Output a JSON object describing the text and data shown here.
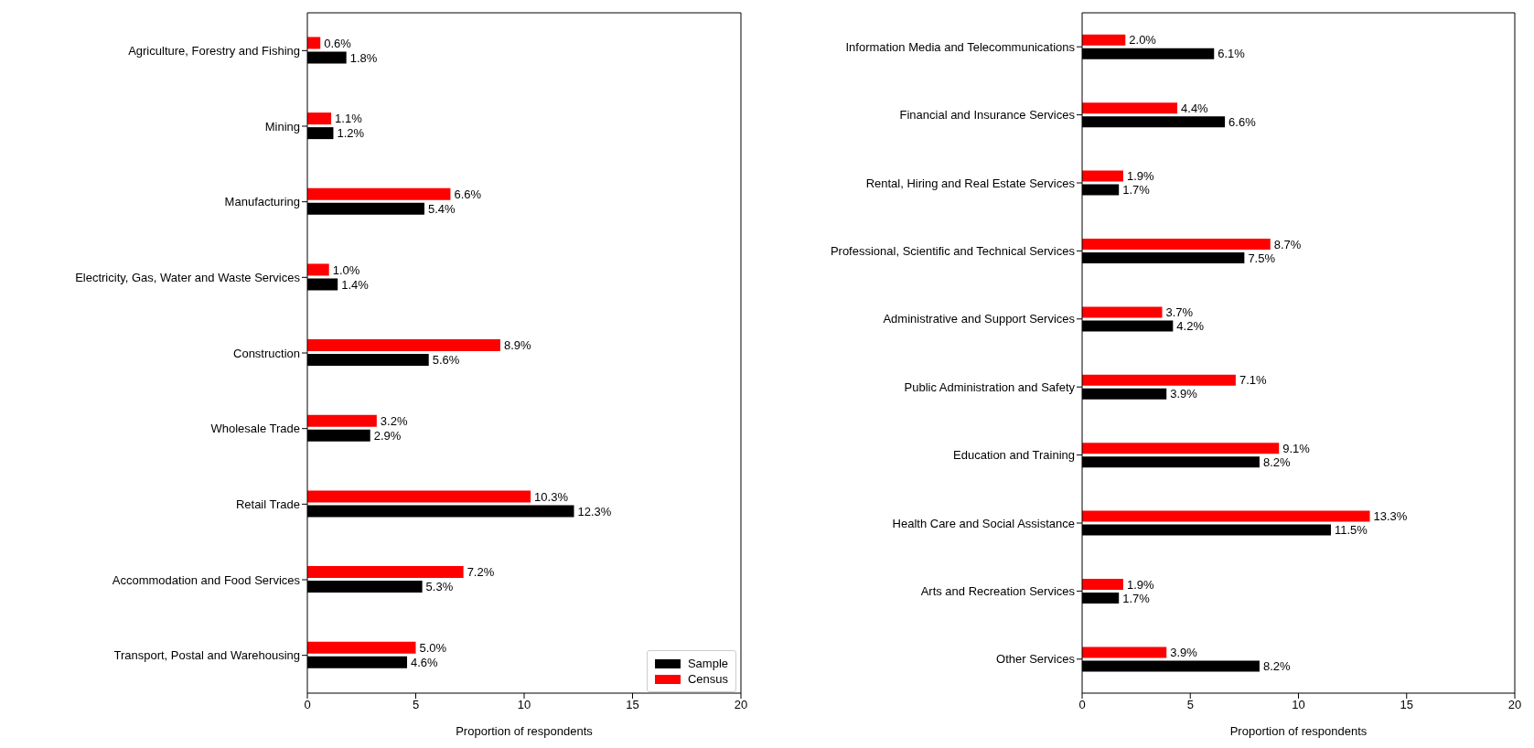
{
  "chart_data": [
    {
      "type": "bar",
      "orientation": "horizontal",
      "categories": [
        "Agriculture, Forestry and Fishing",
        "Mining",
        "Manufacturing",
        "Electricity, Gas, Water and Waste Services",
        "Construction",
        "Wholesale Trade",
        "Retail Trade",
        "Accommodation and Food Services",
        "Transport, Postal and Warehousing"
      ],
      "series": [
        {
          "name": "Sample",
          "color": "#000000",
          "values": [
            1.8,
            1.2,
            5.4,
            1.4,
            5.6,
            2.9,
            12.3,
            5.3,
            4.6
          ],
          "value_labels": [
            "1.8%",
            "1.2%",
            "5.4%",
            "1.4%",
            "5.6%",
            "2.9%",
            "12.3%",
            "5.3%",
            "4.6%"
          ]
        },
        {
          "name": "Census",
          "color": "#ff0000",
          "values": [
            0.6,
            1.1,
            6.6,
            1.0,
            8.9,
            3.2,
            10.3,
            7.2,
            5.0
          ],
          "value_labels": [
            "0.6%",
            "1.1%",
            "6.6%",
            "1.0%",
            "8.9%",
            "3.2%",
            "10.3%",
            "7.2%",
            "5.0%"
          ]
        }
      ],
      "xlabel": "Proportion of respondents",
      "xlim": [
        0,
        20
      ],
      "xticks": [
        0,
        5,
        10,
        15,
        20
      ],
      "grid": false,
      "legend": "bottom right"
    },
    {
      "type": "bar",
      "orientation": "horizontal",
      "categories": [
        "Information Media and Telecommunications",
        "Financial and Insurance Services",
        "Rental, Hiring and Real Estate Services",
        "Professional, Scientific and Technical Services",
        "Administrative and Support Services",
        "Public Administration and Safety",
        "Education and Training",
        "Health Care and Social Assistance",
        "Arts and Recreation Services",
        "Other Services"
      ],
      "series": [
        {
          "color": "#000000",
          "values": [
            6.1,
            6.6,
            1.7,
            7.5,
            4.2,
            3.9,
            8.2,
            11.5,
            1.7,
            8.2
          ],
          "value_labels": [
            "6.1%",
            "6.6%",
            "1.7%",
            "7.5%",
            "4.2%",
            "3.9%",
            "8.2%",
            "11.5%",
            "1.7%",
            "8.2%"
          ]
        },
        {
          "color": "#ff0000",
          "values": [
            2.0,
            4.4,
            1.9,
            8.7,
            3.7,
            7.1,
            9.1,
            13.3,
            1.9,
            3.9
          ],
          "value_labels": [
            "2.0%",
            "4.4%",
            "1.9%",
            "8.7%",
            "3.7%",
            "7.1%",
            "9.1%",
            "13.3%",
            "1.9%",
            "3.9%"
          ]
        }
      ],
      "xlabel": "Proportion of respondents",
      "xlim": [
        0,
        20
      ],
      "xticks": [
        0,
        5,
        10,
        15,
        20
      ],
      "grid": false,
      "legend": false
    }
  ]
}
